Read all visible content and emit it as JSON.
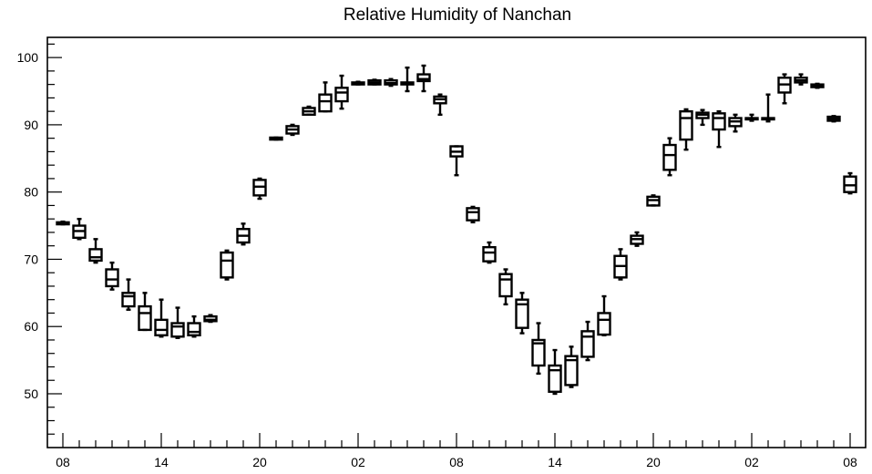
{
  "chart_data": {
    "type": "boxplot",
    "title": "Relative Humidity of Nanchan",
    "xlabel": "",
    "ylabel": "",
    "ylim": [
      42,
      103
    ],
    "y_ticks": [
      50,
      60,
      70,
      80,
      90,
      100
    ],
    "x_tick_labels": [
      {
        "hour": 0,
        "label": "08"
      },
      {
        "hour": 6,
        "label": "14"
      },
      {
        "hour": 12,
        "label": "20"
      },
      {
        "hour": 18,
        "label": "02"
      },
      {
        "hour": 24,
        "label": "08"
      },
      {
        "hour": 30,
        "label": "14"
      },
      {
        "hour": 36,
        "label": "20"
      },
      {
        "hour": 42,
        "label": "02"
      },
      {
        "hour": 48,
        "label": "08"
      }
    ],
    "grid": false,
    "series": [
      {
        "boxes": [
          {
            "hour": 0,
            "low": 75.2,
            "q1": 75.2,
            "median": 75.4,
            "q3": 75.5,
            "high": 75.6
          },
          {
            "hour": 1,
            "low": 73.0,
            "q1": 73.2,
            "median": 74.2,
            "q3": 75.0,
            "high": 76.0
          },
          {
            "hour": 2,
            "low": 69.5,
            "q1": 69.8,
            "median": 70.3,
            "q3": 71.5,
            "high": 73.0
          },
          {
            "hour": 3,
            "low": 65.5,
            "q1": 66.0,
            "median": 67.0,
            "q3": 68.5,
            "high": 69.5
          },
          {
            "hour": 4,
            "low": 62.5,
            "q1": 63.0,
            "median": 64.5,
            "q3": 65.0,
            "high": 67.0
          },
          {
            "hour": 5,
            "low": 59.5,
            "q1": 59.5,
            "median": 62.0,
            "q3": 63.0,
            "high": 65.0
          },
          {
            "hour": 6,
            "low": 58.5,
            "q1": 58.7,
            "median": 59.5,
            "q3": 61.0,
            "high": 64.0
          },
          {
            "hour": 7,
            "low": 58.3,
            "q1": 58.5,
            "median": 60.0,
            "q3": 60.5,
            "high": 62.8
          },
          {
            "hour": 8,
            "low": 58.5,
            "q1": 58.7,
            "median": 59.2,
            "q3": 60.5,
            "high": 61.5
          },
          {
            "hour": 9,
            "low": 60.7,
            "q1": 60.8,
            "median": 61.0,
            "q3": 61.5,
            "high": 61.7
          },
          {
            "hour": 10,
            "low": 67.0,
            "q1": 67.3,
            "median": 69.8,
            "q3": 71.0,
            "high": 71.3
          },
          {
            "hour": 11,
            "low": 72.2,
            "q1": 72.5,
            "median": 73.5,
            "q3": 74.5,
            "high": 75.3
          },
          {
            "hour": 12,
            "low": 79.0,
            "q1": 79.5,
            "median": 80.8,
            "q3": 81.8,
            "high": 82.0
          },
          {
            "hour": 13,
            "low": 87.8,
            "q1": 87.8,
            "median": 88.0,
            "q3": 88.1,
            "high": 88.1
          },
          {
            "hour": 14,
            "low": 88.5,
            "q1": 88.7,
            "median": 89.3,
            "q3": 89.8,
            "high": 90.0
          },
          {
            "hour": 15,
            "low": 91.5,
            "q1": 91.5,
            "median": 92.0,
            "q3": 92.5,
            "high": 92.7
          },
          {
            "hour": 16,
            "low": 92.0,
            "q1": 92.0,
            "median": 93.5,
            "q3": 94.5,
            "high": 96.3
          },
          {
            "hour": 17,
            "low": 92.4,
            "q1": 93.5,
            "median": 94.8,
            "q3": 95.5,
            "high": 97.3
          },
          {
            "hour": 18,
            "low": 96.0,
            "q1": 96.0,
            "median": 96.2,
            "q3": 96.3,
            "high": 96.4
          },
          {
            "hour": 19,
            "low": 96.0,
            "q1": 96.0,
            "median": 96.3,
            "q3": 96.6,
            "high": 96.7
          },
          {
            "hour": 20,
            "low": 95.8,
            "q1": 96.0,
            "median": 96.2,
            "q3": 96.6,
            "high": 96.8
          },
          {
            "hour": 21,
            "low": 95.0,
            "q1": 96.0,
            "median": 96.2,
            "q3": 96.3,
            "high": 98.5
          },
          {
            "hour": 22,
            "low": 95.0,
            "q1": 96.5,
            "median": 96.8,
            "q3": 97.5,
            "high": 98.8
          },
          {
            "hour": 23,
            "low": 91.5,
            "q1": 93.2,
            "median": 93.8,
            "q3": 94.2,
            "high": 94.5
          },
          {
            "hour": 24,
            "low": 82.5,
            "q1": 85.3,
            "median": 86.0,
            "q3": 86.8,
            "high": 86.8
          },
          {
            "hour": 25,
            "low": 75.5,
            "q1": 75.8,
            "median": 77.0,
            "q3": 77.6,
            "high": 77.8
          },
          {
            "hour": 26,
            "low": 69.5,
            "q1": 69.7,
            "median": 71.0,
            "q3": 71.8,
            "high": 72.5
          },
          {
            "hour": 27,
            "low": 63.3,
            "q1": 64.5,
            "median": 67.0,
            "q3": 67.8,
            "high": 68.5
          },
          {
            "hour": 28,
            "low": 59.0,
            "q1": 59.8,
            "median": 63.3,
            "q3": 64.0,
            "high": 65.0
          },
          {
            "hour": 29,
            "low": 53.0,
            "q1": 54.2,
            "median": 57.5,
            "q3": 58.0,
            "high": 60.5
          },
          {
            "hour": 30,
            "low": 50.0,
            "q1": 50.3,
            "median": 53.5,
            "q3": 54.2,
            "high": 56.5
          },
          {
            "hour": 31,
            "low": 51.0,
            "q1": 51.3,
            "median": 55.0,
            "q3": 55.6,
            "high": 57.0
          },
          {
            "hour": 32,
            "low": 55.0,
            "q1": 55.5,
            "median": 58.5,
            "q3": 59.3,
            "high": 60.7
          },
          {
            "hour": 33,
            "low": 58.7,
            "q1": 58.8,
            "median": 61.0,
            "q3": 62.0,
            "high": 64.5
          },
          {
            "hour": 34,
            "low": 67.0,
            "q1": 67.3,
            "median": 69.0,
            "q3": 70.5,
            "high": 71.5
          },
          {
            "hour": 35,
            "low": 72.0,
            "q1": 72.3,
            "median": 73.0,
            "q3": 73.5,
            "high": 74.0
          },
          {
            "hour": 36,
            "low": 78.0,
            "q1": 78.0,
            "median": 78.8,
            "q3": 79.3,
            "high": 79.5
          },
          {
            "hour": 37,
            "low": 82.5,
            "q1": 83.3,
            "median": 85.5,
            "q3": 87.0,
            "high": 88.0
          },
          {
            "hour": 38,
            "low": 86.3,
            "q1": 87.8,
            "median": 91.0,
            "q3": 92.0,
            "high": 92.3
          },
          {
            "hour": 39,
            "low": 90.0,
            "q1": 91.0,
            "median": 91.5,
            "q3": 91.8,
            "high": 92.2
          },
          {
            "hour": 40,
            "low": 86.7,
            "q1": 89.3,
            "median": 91.0,
            "q3": 91.7,
            "high": 92.0
          },
          {
            "hour": 41,
            "low": 89.0,
            "q1": 89.8,
            "median": 90.5,
            "q3": 91.0,
            "high": 91.5
          },
          {
            "hour": 42,
            "low": 90.6,
            "q1": 90.8,
            "median": 90.9,
            "q3": 91.0,
            "high": 91.5
          },
          {
            "hour": 43,
            "low": 90.5,
            "q1": 90.8,
            "median": 90.9,
            "q3": 91.0,
            "high": 94.5
          },
          {
            "hour": 44,
            "low": 93.2,
            "q1": 94.8,
            "median": 96.0,
            "q3": 97.0,
            "high": 97.5
          },
          {
            "hour": 45,
            "low": 96.0,
            "q1": 96.3,
            "median": 96.6,
            "q3": 97.0,
            "high": 97.5
          },
          {
            "hour": 46,
            "low": 95.5,
            "q1": 95.6,
            "median": 95.8,
            "q3": 96.0,
            "high": 96.1
          },
          {
            "hour": 47,
            "low": 90.5,
            "q1": 90.6,
            "median": 90.9,
            "q3": 91.2,
            "high": 91.3
          },
          {
            "hour": 48,
            "low": 79.8,
            "q1": 80.0,
            "median": 81.0,
            "q3": 82.3,
            "high": 82.8
          }
        ]
      }
    ]
  }
}
